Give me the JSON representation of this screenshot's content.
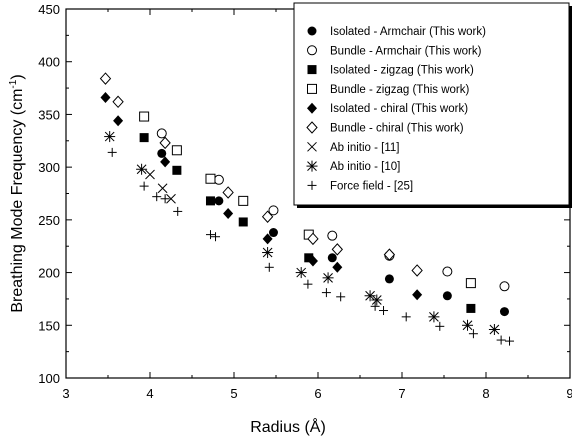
{
  "chart_data": {
    "type": "scatter",
    "xlabel": "Radius (Å)",
    "ylabel_main": "Breathing Mode Frequency (cm",
    "ylabel_sup": "-1",
    "ylabel_close": ")",
    "xlim": [
      3,
      9
    ],
    "ylim": [
      100,
      450
    ],
    "xticks": [
      3,
      4,
      5,
      6,
      7,
      8,
      9
    ],
    "yticks": [
      100,
      150,
      200,
      250,
      300,
      350,
      400,
      450
    ],
    "grid": false,
    "legend_position": "top-right",
    "series": [
      {
        "name": "Isolated - Armchair (This work)",
        "marker": "filled-circle",
        "x": [
          4.14,
          4.82,
          5.47,
          6.17,
          6.85,
          7.54,
          8.22
        ],
        "y": [
          313,
          268,
          238,
          214,
          194,
          178,
          163
        ]
      },
      {
        "name": "Bundle - Armchair (This work)",
        "marker": "open-circle",
        "x": [
          4.14,
          4.82,
          5.47,
          6.17,
          6.85,
          7.54,
          8.22
        ],
        "y": [
          332,
          288,
          259,
          235,
          216,
          201,
          187
        ]
      },
      {
        "name": "Isolated - zigzag (This work)",
        "marker": "filled-square",
        "x": [
          3.93,
          4.32,
          4.72,
          5.11,
          5.89,
          7.82
        ],
        "y": [
          328,
          297,
          268,
          248,
          214,
          166
        ]
      },
      {
        "name": "Bundle - zigzag (This work)",
        "marker": "open-square",
        "x": [
          3.93,
          4.32,
          4.72,
          5.11,
          5.89,
          7.82
        ],
        "y": [
          348,
          316,
          289,
          268,
          236,
          190
        ]
      },
      {
        "name": "Isolated - chiral (This work)",
        "marker": "filled-diamond",
        "x": [
          3.47,
          3.62,
          4.18,
          4.93,
          5.4,
          5.94,
          6.23,
          7.18
        ],
        "y": [
          366,
          344,
          305,
          256,
          232,
          211,
          205,
          179
        ]
      },
      {
        "name": "Bundle - chiral (This work)",
        "marker": "open-diamond",
        "x": [
          3.47,
          3.62,
          4.18,
          4.93,
          5.4,
          5.94,
          6.23,
          6.85,
          7.18
        ],
        "y": [
          384,
          362,
          323,
          276,
          253,
          232,
          222,
          217,
          202
        ]
      },
      {
        "name": "Ab initio - [11]",
        "marker": "x-cross",
        "x": [
          4.0,
          4.15,
          4.25
        ],
        "y": [
          293,
          280,
          270
        ]
      },
      {
        "name": "Ab initio - [10]",
        "marker": "asterisk",
        "x": [
          3.52,
          3.9,
          5.4,
          5.8,
          6.12,
          6.62,
          6.7,
          7.38,
          7.78,
          8.1
        ],
        "y": [
          329,
          298,
          219,
          200,
          195,
          178,
          174,
          158,
          150,
          146
        ]
      },
      {
        "name": "Force field - [25]",
        "marker": "plus",
        "x": [
          3.55,
          3.93,
          4.08,
          4.18,
          4.33,
          4.72,
          4.78,
          5.42,
          5.88,
          6.1,
          6.27,
          6.68,
          6.78,
          7.05,
          7.45,
          7.85,
          8.18,
          8.28
        ],
        "y": [
          314,
          282,
          272,
          270,
          258,
          236,
          234,
          205,
          189,
          181,
          177,
          168,
          164,
          158,
          149,
          142,
          136,
          135
        ]
      }
    ]
  }
}
